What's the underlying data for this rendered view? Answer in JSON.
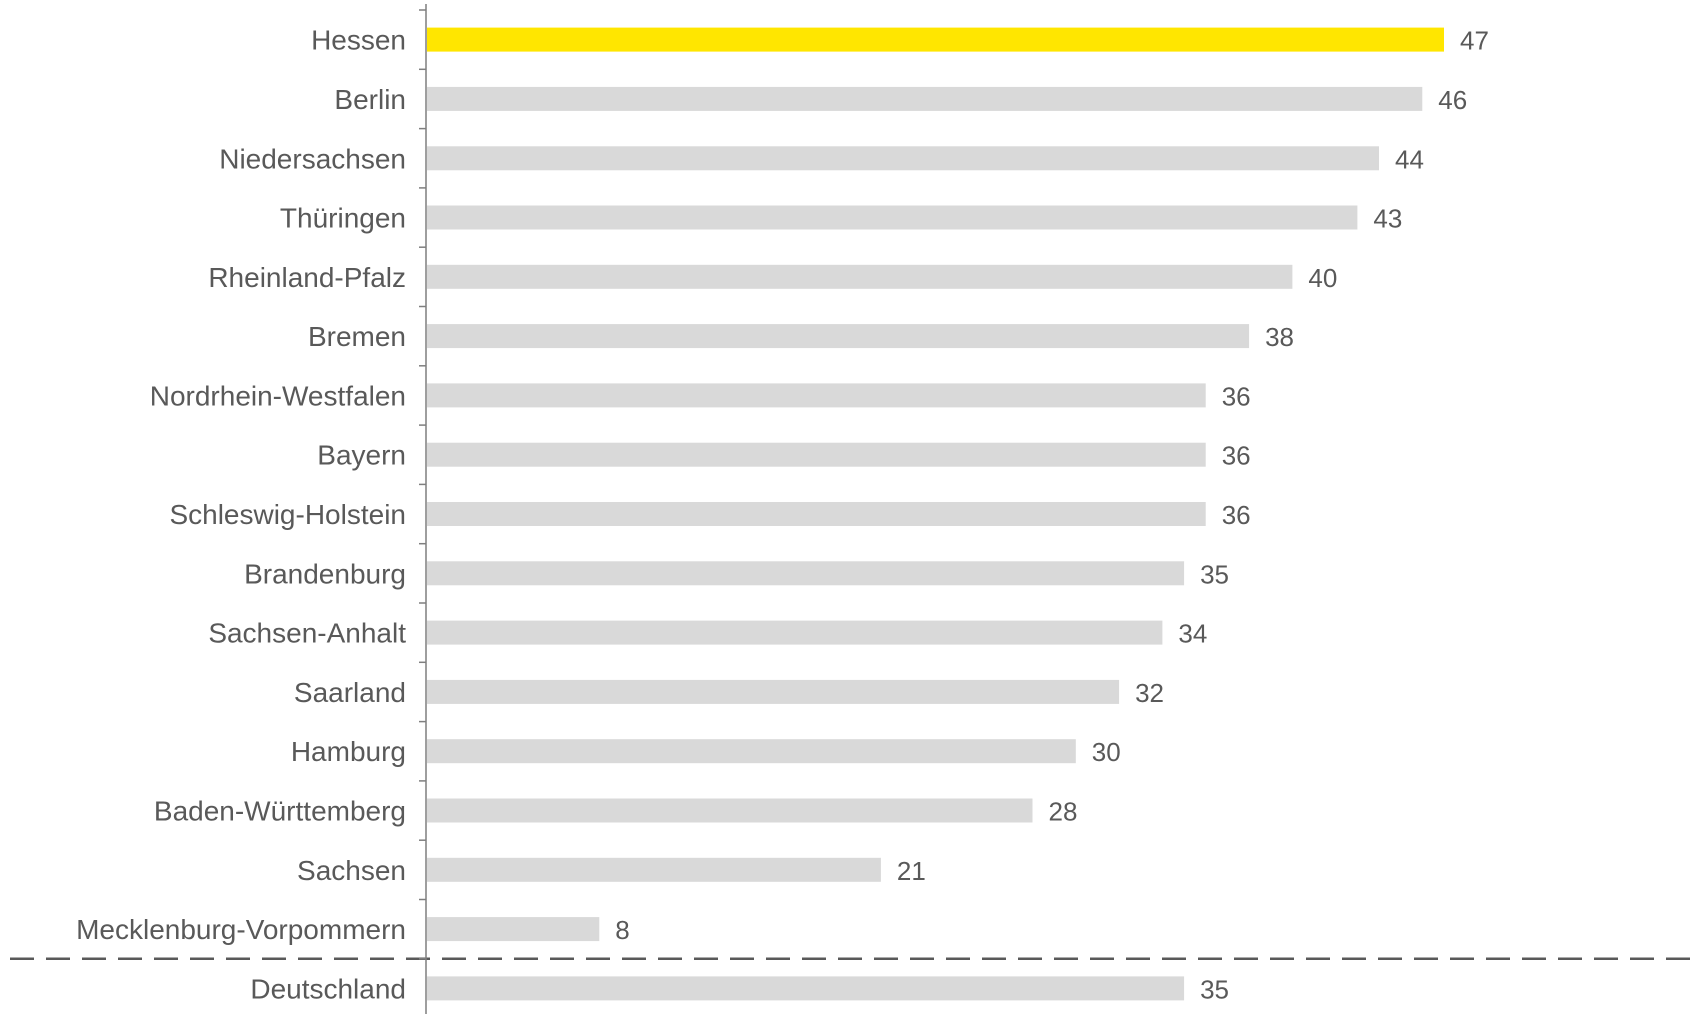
{
  "chart_data": {
    "type": "bar",
    "orientation": "horizontal",
    "categories": [
      "Hessen",
      "Berlin",
      "Niedersachsen",
      "Thüringen",
      "Rheinland-Pfalz",
      "Bremen",
      "Nordrhein-Westfalen",
      "Bayern",
      "Schleswig-Holstein",
      "Brandenburg",
      "Sachsen-Anhalt",
      "Saarland",
      "Hamburg",
      "Baden-Württemberg",
      "Sachsen",
      "Mecklenburg-Vorpommern",
      "Deutschland"
    ],
    "values": [
      47,
      46,
      44,
      43,
      40,
      38,
      36,
      36,
      36,
      35,
      34,
      32,
      30,
      28,
      21,
      8,
      35
    ],
    "data_labels": [
      "47",
      "46",
      "44",
      "43",
      "40",
      "38",
      "36",
      "36",
      "36",
      "35",
      "34",
      "32",
      "30",
      "28",
      "21",
      "8",
      "35"
    ],
    "highlight_category": "Hessen",
    "reference_category": "Deutschland",
    "title": "",
    "xlabel": "",
    "ylabel": "",
    "xlim": [
      0,
      47
    ],
    "grid": false,
    "legend": "none",
    "colors": {
      "highlight": "#FFE600",
      "default": "#D9D9D9",
      "axis": "#7F7F7F",
      "text": "#595959",
      "separator": "#595959"
    }
  }
}
